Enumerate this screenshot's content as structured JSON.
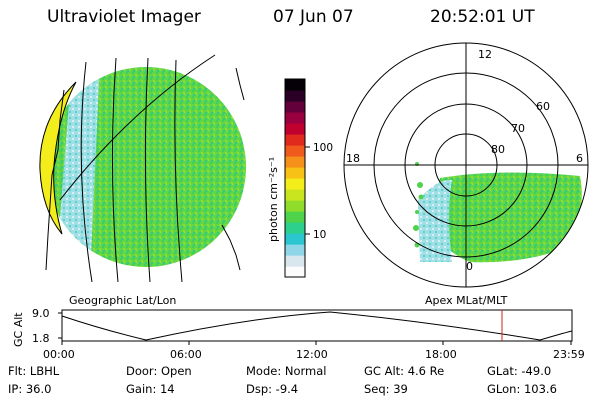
{
  "header": {
    "instrument": "Ultraviolet Imager",
    "date": "07 Jun 07",
    "time": "20:52:01 UT"
  },
  "colorbar": {
    "unit_label": "photon cm⁻²s⁻¹",
    "tick_labels": [
      "100",
      "10"
    ],
    "colors": [
      "#fcfcfc",
      "#d8e6ee",
      "#8fd6e8",
      "#2bc6d0",
      "#2dd08c",
      "#4fd34a",
      "#8fdc2a",
      "#c9e51f",
      "#f3ed1b",
      "#f8c116",
      "#f5901a",
      "#f05a1c",
      "#e02a1e",
      "#c0002f",
      "#9a0040",
      "#63003b",
      "#2b0026",
      "#050008"
    ]
  },
  "left_map": {
    "caption": "Geographic Lat/Lon"
  },
  "polar_plot": {
    "caption": "Apex MLat/MLT",
    "mlt_labels": [
      "12",
      "18",
      "6",
      "0"
    ],
    "mlat_labels": [
      "60",
      "70",
      "80"
    ]
  },
  "altitude_plot": {
    "ylabel": "GC Alt",
    "y_ticks": [
      "9.0",
      "1.8"
    ],
    "x_ticks": [
      "00:00",
      "06:00",
      "12:00",
      "18:00",
      "23:59"
    ]
  },
  "footer": {
    "filter": "Flt: LBHL",
    "ip": "IP: 36.0",
    "door": "Door: Open",
    "gain": "Gain: 14",
    "mode": "Mode: Normal",
    "dsp": "Dsp:    -9.4",
    "gc_alt": "GC Alt: 4.6 Re",
    "seq": "Seq: 39",
    "glat": "GLat: -49.0",
    "glon": "GLon: 103.6"
  }
}
